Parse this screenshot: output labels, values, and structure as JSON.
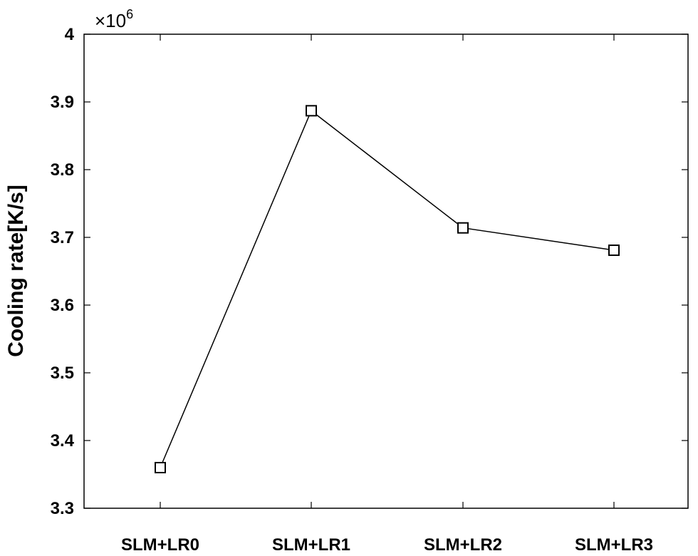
{
  "chart_data": {
    "type": "line",
    "categories": [
      "SLM+LR0",
      "SLM+LR1",
      "SLM+LR2",
      "SLM+LR3"
    ],
    "series": [
      {
        "values": [
          3.36,
          3.887,
          3.714,
          3.681
        ],
        "color": "#000000",
        "marker": "square"
      }
    ],
    "ylabel": "Cooling rate[K/s]",
    "ylim": [
      3.3,
      4.0
    ],
    "yticks": [
      "3.3",
      "3.4",
      "3.5",
      "3.6",
      "3.7",
      "3.8",
      "3.9",
      "4"
    ],
    "y_multiplier_base": "×10",
    "y_multiplier_exponent": "6",
    "grid": false,
    "background": "#ffffff",
    "axis_color": "#000000"
  }
}
